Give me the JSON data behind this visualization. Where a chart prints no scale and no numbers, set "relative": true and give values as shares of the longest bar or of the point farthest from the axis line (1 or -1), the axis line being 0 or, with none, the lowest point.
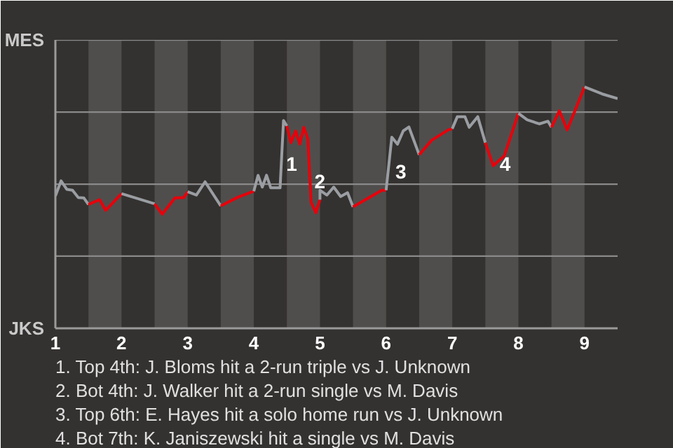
{
  "chart_data": {
    "type": "line",
    "relative": true,
    "series": [
      {
        "color": "#9a9ea3",
        "x": [
          1.0,
          1.086,
          1.172,
          1.259,
          1.345,
          1.431,
          1.5
        ],
        "values": [
          0.548,
          0.611,
          0.576,
          0.572,
          0.542,
          0.54,
          0.513
        ]
      },
      {
        "color": "#e8000b",
        "x": [
          1.5,
          1.667,
          1.762,
          2.0
        ],
        "values": [
          0.513,
          0.533,
          0.489,
          0.558
        ]
      },
      {
        "color": "#9a9ea3",
        "x": [
          2.0,
          2.5
        ],
        "values": [
          0.558,
          0.516
        ]
      },
      {
        "color": "#e8000b",
        "x": [
          2.5,
          2.615,
          2.808,
          2.942,
          3.0
        ],
        "values": [
          0.516,
          0.473,
          0.54,
          0.542,
          0.566
        ]
      },
      {
        "color": "#9a9ea3",
        "x": [
          3.0,
          3.132,
          3.263,
          3.5
        ],
        "values": [
          0.566,
          0.552,
          0.607,
          0.507
        ]
      },
      {
        "color": "#e8000b",
        "x": [
          3.5,
          3.75,
          4.0
        ],
        "values": [
          0.507,
          0.542,
          0.568
        ]
      },
      {
        "color": "#9a9ea3",
        "x": [
          4.0,
          4.064,
          4.128,
          4.192,
          4.256,
          4.397,
          4.449,
          4.5
        ],
        "values": [
          0.568,
          0.634,
          0.585,
          0.634,
          0.582,
          0.582,
          0.861,
          0.838
        ]
      },
      {
        "color": "#e8000b",
        "x": [
          4.5,
          4.561,
          4.634,
          4.695,
          4.756,
          4.817,
          4.866,
          4.939,
          5.0
        ],
        "values": [
          0.838,
          0.769,
          0.818,
          0.763,
          0.833,
          0.785,
          0.522,
          0.479,
          0.533
        ]
      },
      {
        "color": "#9a9ea3",
        "x": [
          5.0,
          5.0,
          5.104,
          5.208,
          5.313,
          5.417,
          5.5
        ],
        "values": [
          0.533,
          0.572,
          0.552,
          0.585,
          0.546,
          0.562,
          0.503
        ]
      },
      {
        "color": "#e8000b",
        "x": [
          5.5,
          5.688,
          5.938,
          6.0
        ],
        "values": [
          0.503,
          0.533,
          0.572,
          0.572
        ]
      },
      {
        "color": "#9a9ea3",
        "x": [
          6.0,
          6.086,
          6.172,
          6.259,
          6.345,
          6.5
        ],
        "values": [
          0.572,
          0.792,
          0.763,
          0.818,
          0.834,
          0.719
        ]
      },
      {
        "color": "#e8000b",
        "x": [
          6.5,
          6.688,
          6.938,
          7.0
        ],
        "values": [
          0.719,
          0.779,
          0.822,
          0.827
        ]
      },
      {
        "color": "#9a9ea3",
        "x": [
          7.0,
          7.077,
          7.192,
          7.256,
          7.385,
          7.5
        ],
        "values": [
          0.827,
          0.877,
          0.877,
          0.833,
          0.877,
          0.769
        ]
      },
      {
        "color": "#e8000b",
        "x": [
          7.5,
          7.619,
          7.786,
          8.0
        ],
        "values": [
          0.769,
          0.674,
          0.714,
          0.891
        ]
      },
      {
        "color": "#9a9ea3",
        "x": [
          8.0,
          8.132,
          8.316,
          8.447,
          8.5
        ],
        "values": [
          0.891,
          0.864,
          0.847,
          0.858,
          0.833
        ]
      },
      {
        "color": "#e8000b",
        "x": [
          8.5,
          8.619,
          8.738,
          9.0
        ],
        "values": [
          0.833,
          0.901,
          0.822,
          1.0
        ]
      },
      {
        "color": "#9a9ea3",
        "x": [
          9.0,
          9.267,
          9.5
        ],
        "values": [
          1.0,
          0.971,
          0.952
        ]
      }
    ],
    "xlim": [
      1,
      9.5
    ],
    "xticks": [
      1,
      2,
      3,
      4,
      5,
      6,
      7,
      8,
      9
    ],
    "ref_lines": [
      {
        "axis": "y",
        "value": 0.299,
        "color": "#8a8a8a"
      },
      {
        "axis": "y",
        "value": 0.597,
        "color": "#8a8a8a"
      },
      {
        "axis": "y",
        "value": 0.896,
        "color": "#8a8a8a"
      },
      {
        "axis": "y",
        "value": 1.195,
        "color": "#8a8a8a"
      }
    ],
    "bands": [
      {
        "axis": "x",
        "from": 1.5,
        "to": 2,
        "color": "#504e4c"
      },
      {
        "axis": "x",
        "from": 2.5,
        "to": 3,
        "color": "#504e4c"
      },
      {
        "axis": "x",
        "from": 3.5,
        "to": 4,
        "color": "#504e4c"
      },
      {
        "axis": "x",
        "from": 4.5,
        "to": 5,
        "color": "#504e4c"
      },
      {
        "axis": "x",
        "from": 5.5,
        "to": 6,
        "color": "#504e4c"
      },
      {
        "axis": "x",
        "from": 6.5,
        "to": 7,
        "color": "#504e4c"
      },
      {
        "axis": "x",
        "from": 7.5,
        "to": 8,
        "color": "#504e4c"
      },
      {
        "axis": "x",
        "from": 8.5,
        "to": 9,
        "color": "#504e4c"
      }
    ],
    "annotations": [
      "MES",
      "JKS",
      {
        "text": "1",
        "x": 4.487,
        "y": 0.681
      },
      {
        "text": "2",
        "x": 4.915,
        "y": 0.609
      },
      {
        "text": "3",
        "x": 6.138,
        "y": 0.651
      },
      {
        "text": "4",
        "x": 7.714,
        "y": 0.681
      },
      "1. Top 4th: J. Bloms hit a 2-run triple vs J. Unknown",
      "2. Bot 4th: J. Walker hit a 2-run single vs M. Davis",
      "3. Top 6th: E. Hayes hit a solo home run vs J. Unknown",
      "4. Bot 7th: K. Janiszewski hit a single vs M. Davis"
    ]
  }
}
